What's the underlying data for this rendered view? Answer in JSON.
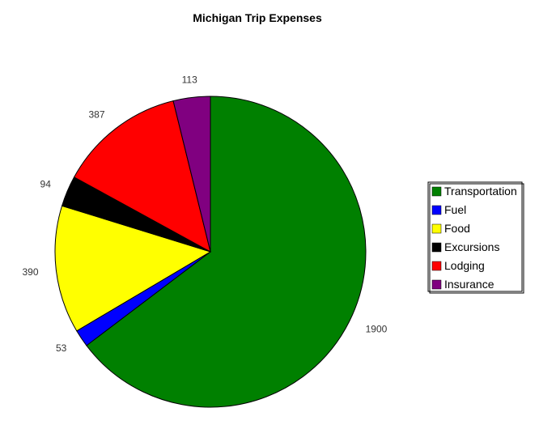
{
  "chart_data": {
    "type": "pie",
    "title": "Michigan Trip Expenses",
    "categories": [
      "Transportation",
      "Fuel",
      "Food",
      "Excursions",
      "Lodging",
      "Insurance"
    ],
    "values": [
      1900,
      53,
      390,
      94,
      387,
      113
    ],
    "colors": [
      "#008000",
      "#0000ff",
      "#ffff00",
      "#000000",
      "#ff0000",
      "#800080"
    ],
    "legend_position": "right"
  }
}
